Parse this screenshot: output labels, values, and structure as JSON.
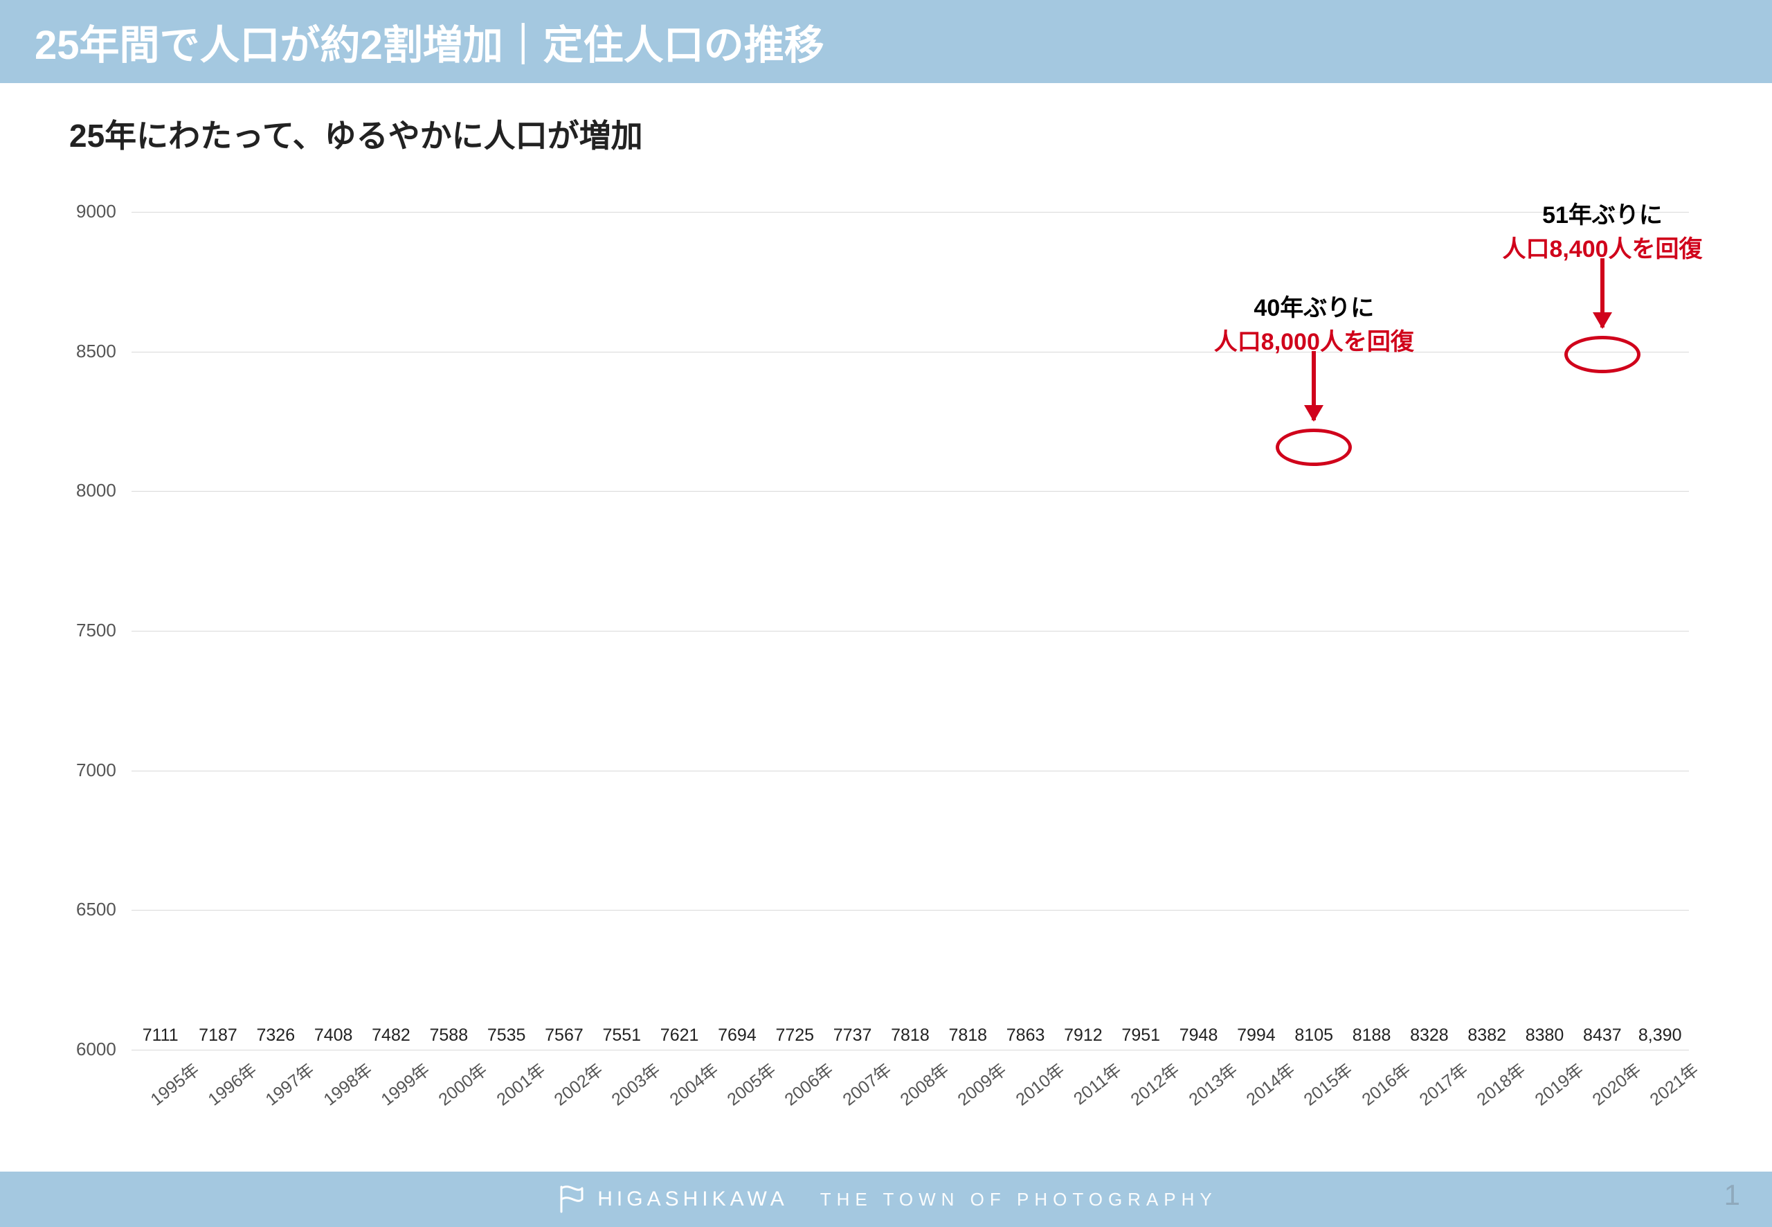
{
  "header": {
    "title": "25年間で人口が約2割増加｜定住人口の推移"
  },
  "subtitle": "25年にわたって、ゆるやかに人口が増加",
  "chart": {
    "type": "bar",
    "ylim": [
      6000,
      9000
    ],
    "ytick_step": 500,
    "bar_color": "#a4c8e0",
    "grid_color": "#d9d9d9",
    "axis_text_color": "#555555",
    "label_text_color": "#222222",
    "axis_fontsize": 26,
    "label_fontsize": 25,
    "bar_width_ratio": 0.64,
    "categories": [
      "1995年",
      "1996年",
      "1997年",
      "1998年",
      "1999年",
      "2000年",
      "2001年",
      "2002年",
      "2003年",
      "2004年",
      "2005年",
      "2006年",
      "2007年",
      "2008年",
      "2009年",
      "2010年",
      "2011年",
      "2012年",
      "2013年",
      "2014年",
      "2015年",
      "2016年",
      "2017年",
      "2018年",
      "2019年",
      "2020年",
      "2021年"
    ],
    "values": [
      7111,
      7187,
      7326,
      7408,
      7482,
      7588,
      7535,
      7567,
      7551,
      7621,
      7694,
      7725,
      7737,
      7818,
      7818,
      7863,
      7912,
      7951,
      7948,
      7994,
      8105,
      8188,
      8328,
      8382,
      8380,
      8437,
      8390
    ],
    "value_labels": [
      "7111",
      "7187",
      "7326",
      "7408",
      "7482",
      "7588",
      "7535",
      "7567",
      "7551",
      "7621",
      "7694",
      "7725",
      "7737",
      "7818",
      "7818",
      "7863",
      "7912",
      "7951",
      "7948",
      "7994",
      "8105",
      "8188",
      "8328",
      "8382",
      "8380",
      "8437",
      "8,390"
    ]
  },
  "annotations": [
    {
      "line1": "40年ぶりに",
      "line2": "人口8,000人を回復",
      "target_index": 20,
      "ring": true,
      "color": "#d0021b"
    },
    {
      "line1": "51年ぶりに",
      "line2": "人口8,400人を回復",
      "target_index": 25,
      "ring": true,
      "color": "#d0021b"
    }
  ],
  "footer": {
    "brand": "HIGASHIKAWA",
    "tagline": "THE TOWN OF PHOTOGRAPHY",
    "accent_color": "#a4c8e0",
    "page_number": "1"
  }
}
